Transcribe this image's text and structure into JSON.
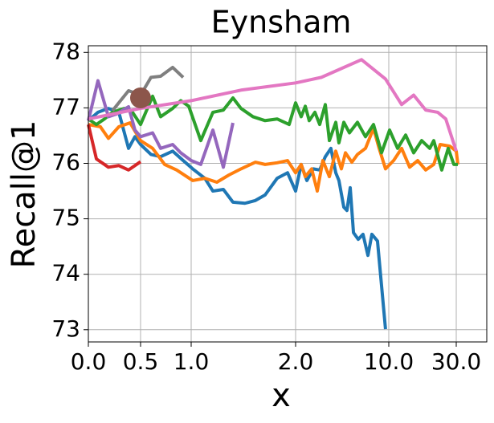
{
  "chart_data": {
    "type": "line",
    "title": "Eynsham",
    "xlabel": "x",
    "ylabel": "Recall@1",
    "xlim": [
      0,
      39
    ],
    "ylim": [
      72.78,
      78.12
    ],
    "xticks": [
      {
        "value": 0,
        "label": "0.0"
      },
      {
        "value": 0.5,
        "label": "0.5"
      },
      {
        "value": 1,
        "label": "1.0"
      },
      {
        "value": 2,
        "label": "2.0"
      },
      {
        "value": 10,
        "label": "10.0"
      },
      {
        "value": 30,
        "label": "30.0"
      }
    ],
    "yticks": [
      73,
      74,
      75,
      76,
      77,
      78
    ],
    "grid": true,
    "series": [
      {
        "color": "#1f77b4",
        "x": [
          0,
          0.092,
          0.192,
          0.292,
          0.385,
          0.446,
          0.5,
          0.603,
          0.698,
          0.817,
          0.921,
          1.015,
          1.131,
          1.208,
          1.308,
          1.4,
          1.515,
          1.615,
          1.708,
          1.823,
          1.923,
          2,
          2.48,
          2.97,
          3.52,
          4.07,
          4.55,
          5.03,
          5.45,
          5.72,
          6.14,
          6.41,
          6.69,
          6.97,
          7.38,
          7.79,
          8.21,
          8.55,
          9.03,
          9.72
        ],
        "values": [
          76.77,
          76.92,
          76.99,
          76.92,
          76.27,
          76.48,
          76.34,
          76.16,
          76.12,
          76.22,
          76.05,
          75.9,
          75.73,
          75.5,
          75.53,
          75.3,
          75.28,
          75.33,
          75.43,
          75.73,
          75.83,
          75.5,
          75.98,
          75.69,
          75.9,
          75.88,
          76.12,
          76.27,
          75.83,
          75.69,
          75.21,
          75.15,
          75.56,
          74.75,
          74.63,
          74.72,
          74.34,
          74.72,
          74.6,
          73.01
        ]
      },
      {
        "color": "#ff7f0e",
        "x": [
          0,
          0.115,
          0.192,
          0.292,
          0.4,
          0.5,
          0.619,
          0.738,
          0.857,
          1.015,
          1.131,
          1.246,
          1.362,
          1.477,
          1.615,
          1.708,
          1.823,
          1.923,
          2,
          2.48,
          2.83,
          3.38,
          3.86,
          4.34,
          4.9,
          5.45,
          5.93,
          6.28,
          6.83,
          7.31,
          8.0,
          8.69,
          9.17,
          9.72,
          11.43,
          13.81,
          16.19,
          18.57,
          20.95,
          23.33,
          25.24,
          28.1,
          30,
          30.48
        ],
        "values": [
          76.7,
          76.66,
          76.45,
          76.66,
          76.73,
          76.41,
          76.27,
          75.98,
          75.88,
          75.69,
          75.73,
          75.66,
          75.79,
          75.9,
          76.02,
          75.98,
          76.01,
          76.05,
          75.83,
          75.98,
          75.76,
          75.9,
          75.5,
          76.05,
          75.76,
          76.22,
          75.9,
          76.19,
          76.02,
          76.16,
          76.27,
          76.63,
          76.27,
          75.9,
          76.05,
          76.27,
          75.93,
          76.05,
          75.88,
          75.98,
          76.34,
          76.31,
          76.22,
          75.98
        ]
      },
      {
        "color": "#2ca02c",
        "x": [
          0,
          0.077,
          0.154,
          0.231,
          0.346,
          0.423,
          0.5,
          0.619,
          0.698,
          0.817,
          0.897,
          0.976,
          1.092,
          1.208,
          1.308,
          1.4,
          1.477,
          1.592,
          1.708,
          1.823,
          1.938,
          2,
          2.48,
          2.83,
          3.17,
          3.66,
          4.07,
          4.55,
          4.9,
          5.45,
          5.72,
          6.14,
          6.62,
          7.31,
          8.0,
          8.69,
          9.38,
          10.24,
          12.62,
          15,
          17.38,
          19.76,
          22.14,
          23.33,
          25.71,
          27.62,
          29.29,
          30.48
        ],
        "values": [
          76.8,
          76.7,
          76.8,
          76.92,
          76.99,
          76.92,
          76.7,
          77.21,
          76.84,
          76.99,
          77.13,
          77.03,
          76.41,
          76.92,
          76.96,
          77.18,
          76.99,
          76.84,
          76.77,
          76.8,
          76.7,
          77.09,
          76.84,
          77.03,
          76.77,
          76.92,
          76.7,
          77.06,
          76.41,
          76.74,
          76.37,
          76.74,
          76.55,
          76.74,
          76.48,
          76.7,
          76.19,
          76.6,
          76.27,
          76.51,
          76.19,
          76.41,
          76.27,
          76.41,
          75.88,
          76.27,
          75.98,
          75.98
        ]
      },
      {
        "color": "#d62728",
        "x": [
          0,
          0.077,
          0.192,
          0.292,
          0.385,
          0.5
        ],
        "values": [
          76.7,
          76.08,
          75.93,
          75.96,
          75.88,
          76.03
        ]
      },
      {
        "color": "#9467bd",
        "x": [
          0,
          0.092,
          0.192,
          0.269,
          0.385,
          0.446,
          0.5,
          0.619,
          0.698,
          0.817,
          0.897,
          1,
          1.092,
          1.208,
          1.308,
          1.4
        ],
        "values": [
          76.77,
          77.49,
          76.84,
          76.89,
          77.02,
          76.6,
          76.48,
          76.55,
          76.27,
          76.34,
          76.19,
          76.05,
          75.98,
          76.6,
          75.93,
          76.73
        ]
      },
      {
        "color": "#e377c2",
        "x": [
          0,
          0.5,
          1,
          1.477,
          2,
          4.21,
          7.66,
          9.72,
          13.81,
          17.38,
          20.95,
          24.52,
          26.9,
          30
        ],
        "values": [
          76.8,
          76.99,
          77.13,
          77.32,
          77.45,
          77.55,
          77.87,
          77.52,
          77.06,
          77.23,
          76.96,
          76.92,
          76.8,
          76.22
        ]
      },
      {
        "color": "#7f7f7f",
        "x": [
          0.231,
          0.385,
          0.5,
          0.603,
          0.698,
          0.817,
          0.921
        ],
        "values": [
          76.95,
          77.31,
          77.23,
          77.55,
          77.57,
          77.73,
          77.55
        ]
      }
    ],
    "points": [
      {
        "color": "#8c564b",
        "x": 0.5,
        "value": 77.18
      }
    ]
  }
}
